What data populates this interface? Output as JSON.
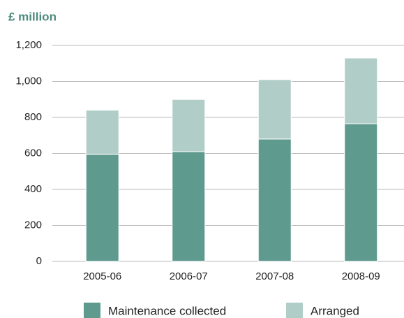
{
  "chart_data": {
    "type": "stacked_bar",
    "title": "£ million",
    "categories": [
      "2005-06",
      "2006-07",
      "2007-08",
      "2008-09"
    ],
    "series": [
      {
        "name": "Maintenance collected",
        "color": "#5f9a8f",
        "values": [
          595,
          610,
          680,
          765
        ]
      },
      {
        "name": "Arranged",
        "color": "#b0cdc7",
        "values": [
          245,
          290,
          330,
          365
        ]
      }
    ],
    "ylim": [
      0,
      1200
    ],
    "yticks": [
      0,
      200,
      400,
      600,
      800,
      {
        "value": 1000,
        "label": "1,000"
      },
      {
        "value": 1200,
        "label": "1,200"
      }
    ],
    "grid": true,
    "legend": "bottom"
  }
}
